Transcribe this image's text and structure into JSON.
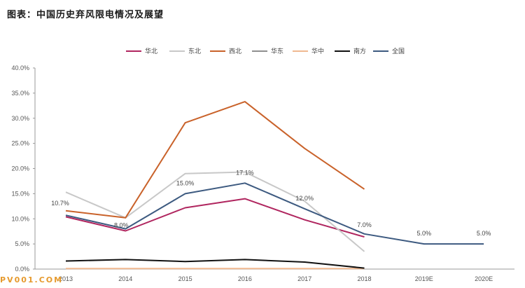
{
  "title": "图表：中国历史弃风限电情况及展望",
  "watermark": "PV001.COM",
  "chart_data": {
    "type": "line",
    "categories": [
      "2013",
      "2014",
      "2015",
      "2016",
      "2017",
      "2018",
      "2019E",
      "2020E"
    ],
    "ylim": [
      0,
      40
    ],
    "yticks": [
      "0.0%",
      "5.0%",
      "10.0%",
      "15.0%",
      "20.0%",
      "25.0%",
      "30.0%",
      "35.0%",
      "40.0%"
    ],
    "grid": false,
    "legend_position": "top",
    "series": [
      {
        "name": "华北",
        "color": "#b0265f",
        "values": [
          10.4,
          7.6,
          12.2,
          14.0,
          9.8,
          6.4,
          null,
          null
        ]
      },
      {
        "name": "东北",
        "color": "#c8c8c8",
        "values": [
          15.3,
          10.2,
          19.0,
          19.3,
          13.5,
          3.5,
          null,
          null
        ]
      },
      {
        "name": "西北",
        "color": "#c9622a",
        "values": [
          11.6,
          10.2,
          29.1,
          33.3,
          24.0,
          15.9,
          null,
          null
        ]
      },
      {
        "name": "华东",
        "color": "#8f8f8f",
        "values": [
          null,
          null,
          null,
          null,
          null,
          null,
          null,
          null
        ]
      },
      {
        "name": "华中",
        "color": "#f0b890",
        "values": [
          0.1,
          0.1,
          0.1,
          0.1,
          0.1,
          0.1,
          null,
          null
        ]
      },
      {
        "name": "南方",
        "color": "#111111",
        "values": [
          1.6,
          1.9,
          1.5,
          1.9,
          1.4,
          0.2,
          null,
          null
        ]
      },
      {
        "name": "全国",
        "color": "#3d5a80",
        "values": [
          10.7,
          8.0,
          15.0,
          17.1,
          12.0,
          7.0,
          5.0,
          5.0
        ]
      }
    ],
    "data_labels": [
      {
        "series": "全国",
        "index": 0,
        "text": "10.7%"
      },
      {
        "series": "全国",
        "index": 1,
        "text": "8.0%"
      },
      {
        "series": "全国",
        "index": 2,
        "text": "15.0%"
      },
      {
        "series": "全国",
        "index": 3,
        "text": "17.1%"
      },
      {
        "series": "全国",
        "index": 4,
        "text": "12.0%"
      },
      {
        "series": "全国",
        "index": 5,
        "text": "7.0%"
      },
      {
        "series": "全国",
        "index": 6,
        "text": "5.0%"
      },
      {
        "series": "全国",
        "index": 7,
        "text": "5.0%"
      }
    ]
  }
}
